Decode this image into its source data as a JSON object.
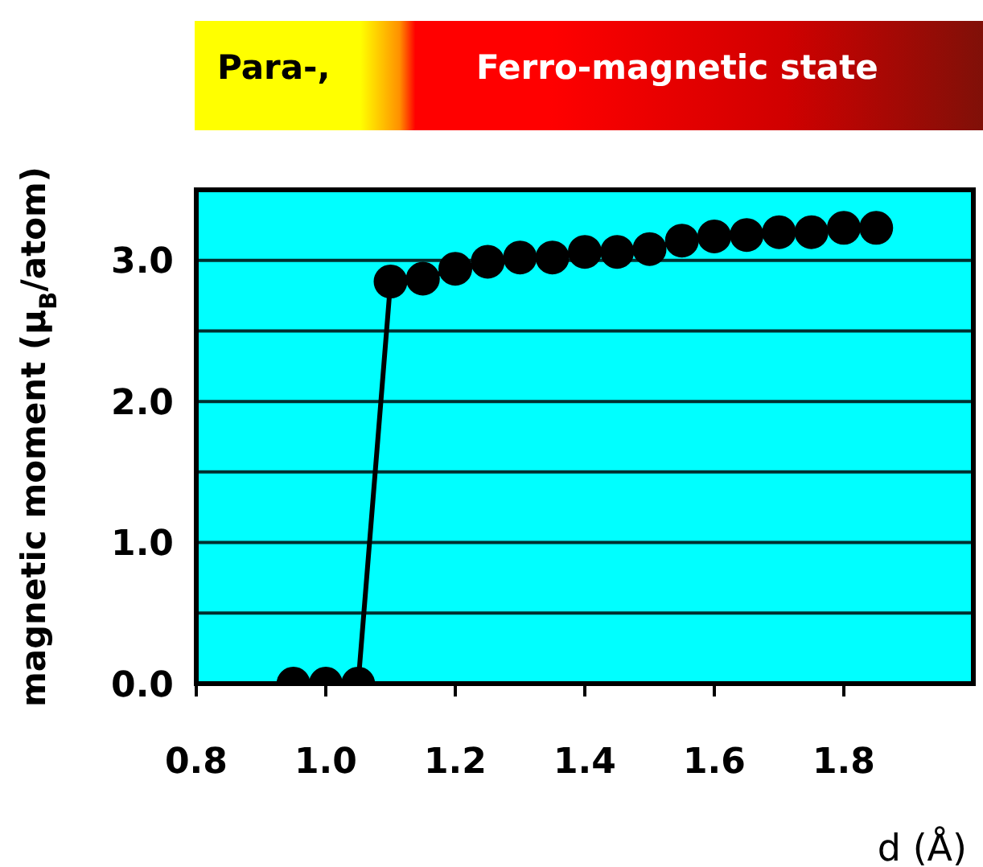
{
  "chart_data": {
    "type": "line",
    "xlabel": "d (Å)",
    "ylabel": "magnetic moment (μ$_{B}$/atom)",
    "annotations": [
      "Para-,",
      "Ferro-magnetic state"
    ],
    "x": [
      0.95,
      1.0,
      1.05,
      1.1,
      1.15,
      1.2,
      1.25,
      1.3,
      1.35,
      1.4,
      1.45,
      1.5,
      1.55,
      1.6,
      1.65,
      1.7,
      1.75,
      1.8,
      1.85
    ],
    "series": [
      {
        "color": "#000000",
        "values": [
          0,
          0,
          0,
          2.85,
          2.87,
          2.94,
          2.99,
          3.02,
          3.02,
          3.06,
          3.06,
          3.08,
          3.14,
          3.17,
          3.18,
          3.2,
          3.2,
          3.23,
          3.23
        ]
      }
    ],
    "xlim": [
      0.8,
      2.0
    ],
    "xticks": [
      0.8,
      {
        "value": 1,
        "label": "1.0"
      },
      1.2,
      1.4,
      1.6,
      1.8
    ],
    "ylim": [
      0,
      3.5
    ],
    "yticks": [
      {
        "value": 0,
        "label": "0.0"
      },
      {
        "value": 0.5,
        "label": null
      },
      {
        "value": 1,
        "label": "1.0"
      },
      {
        "value": 1.5,
        "label": null
      },
      {
        "value": 2,
        "label": "2.0"
      },
      {
        "value": 2.5,
        "label": null
      },
      {
        "value": 3,
        "label": "3.0"
      }
    ],
    "grid": "y",
    "marker": "circle",
    "line_style": "solid",
    "legend": false
  }
}
